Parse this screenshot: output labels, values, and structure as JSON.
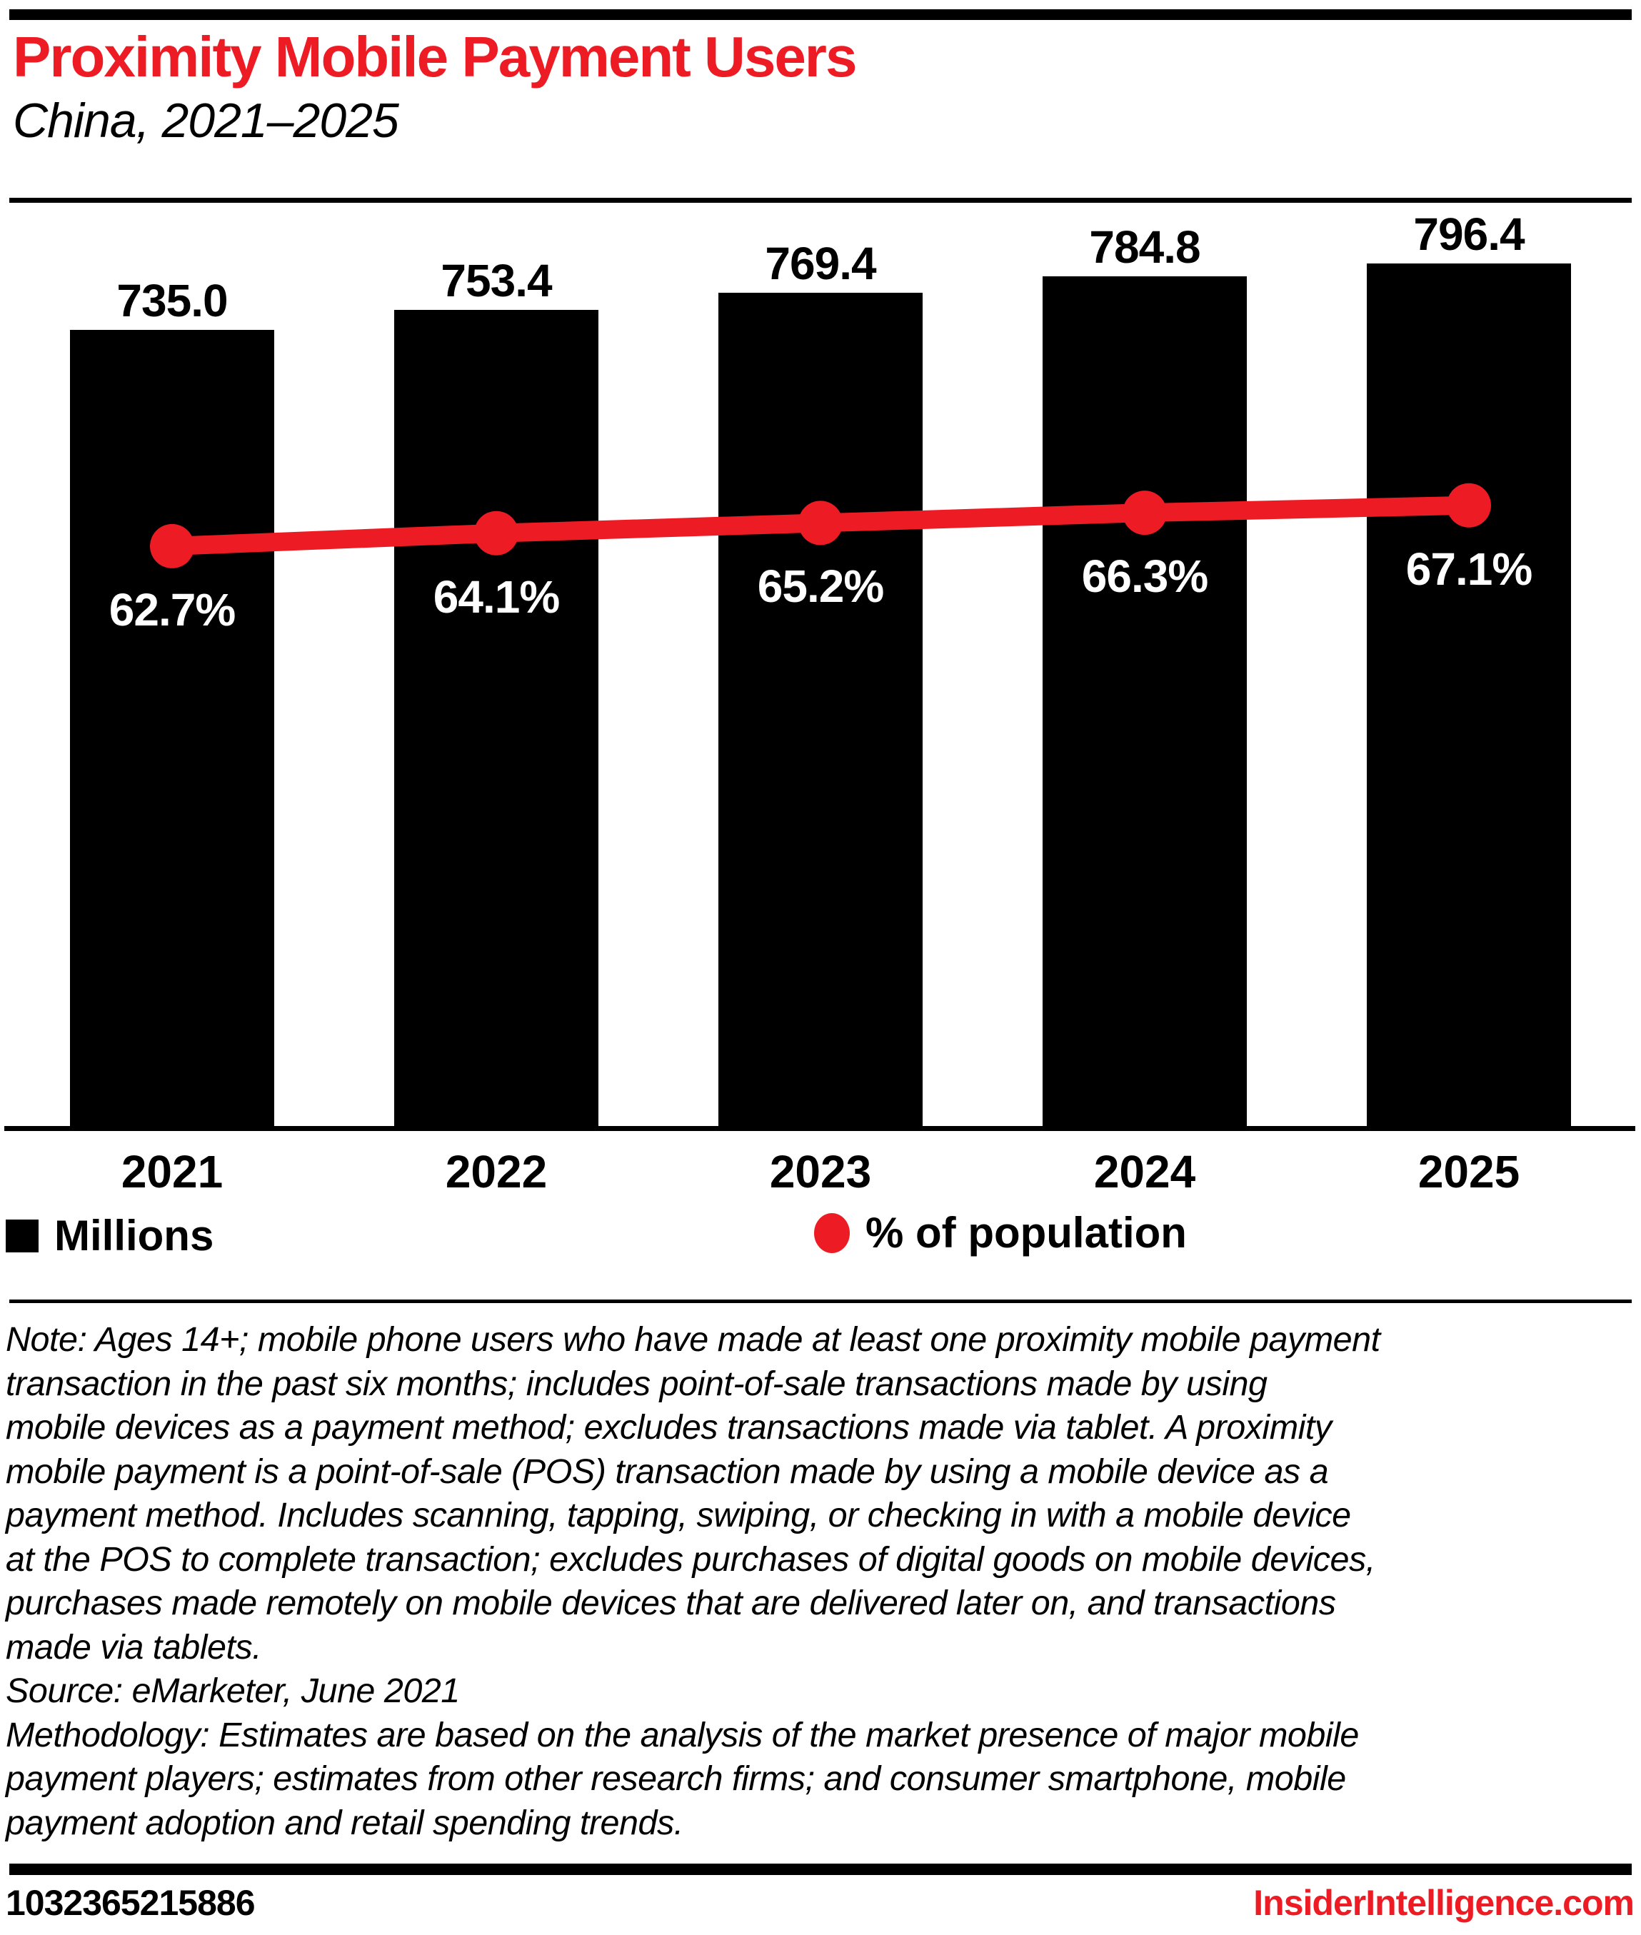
{
  "header": {
    "title": "Proximity Mobile Payment Users",
    "subtitle": "China, 2021–2025"
  },
  "chart_data": {
    "type": "bar",
    "subtype": "bar-with-line-overlay",
    "categories": [
      "2021",
      "2022",
      "2023",
      "2024",
      "2025"
    ],
    "series": [
      {
        "name": "Millions",
        "type": "bar",
        "color": "#000000",
        "values": [
          735.0,
          753.4,
          769.4,
          784.8,
          796.4
        ]
      },
      {
        "name": "% of population",
        "type": "line",
        "color": "#ed1c24",
        "values": [
          62.7,
          64.1,
          65.2,
          66.3,
          67.1
        ]
      }
    ],
    "bar_value_labels": [
      "735.0",
      "753.4",
      "769.4",
      "784.8",
      "796.4"
    ],
    "line_value_labels": [
      "62.7%",
      "64.1%",
      "65.2%",
      "66.3%",
      "67.1%"
    ],
    "legend": [
      {
        "label": "Millions",
        "swatch": "black-square"
      },
      {
        "label": "% of population",
        "swatch": "red-dot"
      }
    ],
    "axes": {
      "x_label": "",
      "y_label": "",
      "bar_axis_min": 0,
      "bar_axis_max_estimate": 855,
      "line_axis_min_pct": 0,
      "line_axis_max_pct": 100,
      "gridlines": false,
      "legend_position": "bottom"
    }
  },
  "notes": {
    "note": "Note: Ages 14+; mobile phone users who have made at least one proximity mobile payment\ntransaction in the past six months; includes point-of-sale transactions made by using\nmobile devices as a payment method; excludes transactions made via tablet. A proximity\nmobile payment is a point-of-sale (POS) transaction made by using a mobile device as a\npayment method. Includes scanning, tapping, swiping, or checking in with a mobile device\nat the POS to complete transaction; excludes purchases of digital goods on mobile devices,\npurchases made remotely on mobile devices that are delivered later on, and transactions\nmade via tablets.",
    "source": "Source: eMarketer, June 2021",
    "methodology": "Methodology: Estimates are based on the analysis of the market presence of major mobile\npayment players; estimates from other research firms; and consumer smartphone, mobile\npayment adoption and retail spending trends."
  },
  "footer": {
    "chart_id": "1032365215886",
    "site": "InsiderIntelligence.com"
  },
  "colors": {
    "accent_red": "#ed1c24",
    "bar_black": "#000000",
    "background": "#ffffff",
    "pct_label_text": "#ffffff"
  }
}
